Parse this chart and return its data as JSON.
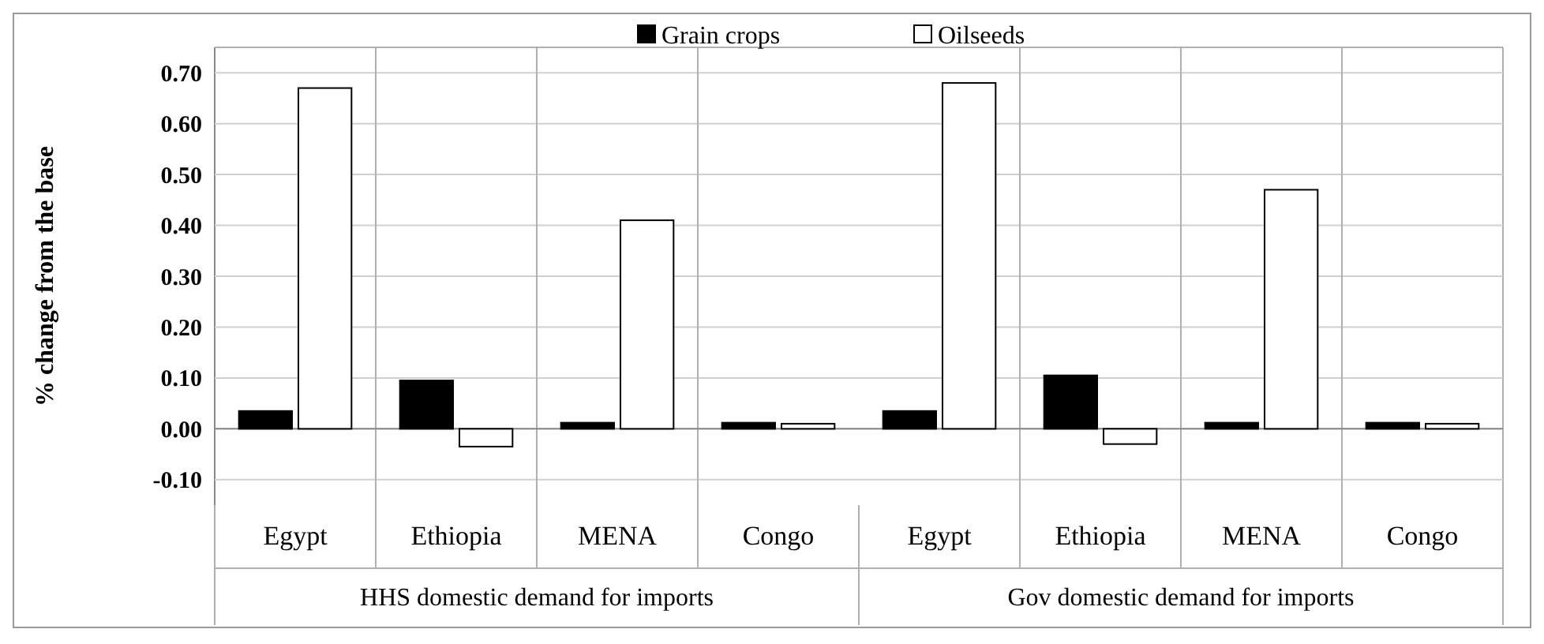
{
  "chart_data": [
    {
      "type": "bar",
      "categories": [
        "Egypt",
        "Ethiopia",
        "MENA",
        "Congo"
      ],
      "xlabel": "HHS domestic demand for imports",
      "ylabel": "% change from the base",
      "ylim": [
        -0.15,
        0.75
      ],
      "yticks": [
        {
          "value": -0.1,
          "label": "-0.10"
        },
        {
          "value": 0,
          "label": "0.00"
        },
        {
          "value": 0.1,
          "label": "0.10"
        },
        {
          "value": 0.2,
          "label": "0.20"
        },
        {
          "value": 0.3,
          "label": "0.30"
        },
        {
          "value": 0.4,
          "label": "0.40"
        },
        {
          "value": 0.5,
          "label": "0.50"
        },
        {
          "value": 0.6,
          "label": "0.60"
        },
        {
          "value": 0.7,
          "label": "0.70"
        }
      ],
      "grid": true,
      "legend": "top",
      "series": [
        {
          "name": "Grain crops",
          "color": "#000000",
          "values": [
            0.035,
            0.095,
            0.012,
            0.012
          ]
        },
        {
          "name": "Oilseeds",
          "color": "#ffffff",
          "values": [
            0.67,
            -0.035,
            0.41,
            0.01
          ]
        }
      ]
    },
    {
      "type": "bar",
      "categories": [
        "Egypt",
        "Ethiopia",
        "MENA",
        "Congo"
      ],
      "xlabel": "Gov domestic demand for imports",
      "ylim": [
        -0.15,
        0.75
      ],
      "yticks": [
        {
          "value": -0.1,
          "label": null
        },
        {
          "value": 0,
          "label": null
        },
        {
          "value": 0.1,
          "label": null
        },
        {
          "value": 0.2,
          "label": null
        },
        {
          "value": 0.3,
          "label": null
        },
        {
          "value": 0.4,
          "label": null
        },
        {
          "value": 0.5,
          "label": null
        },
        {
          "value": 0.6,
          "label": null
        },
        {
          "value": 0.7,
          "label": null
        }
      ],
      "grid": true,
      "tick_labels": "x",
      "series": [
        {
          "color": "#000000",
          "values": [
            0.035,
            0.105,
            0.012,
            0.012
          ]
        },
        {
          "color": "#ffffff",
          "values": [
            0.68,
            -0.03,
            0.47,
            0.01
          ]
        }
      ]
    }
  ]
}
